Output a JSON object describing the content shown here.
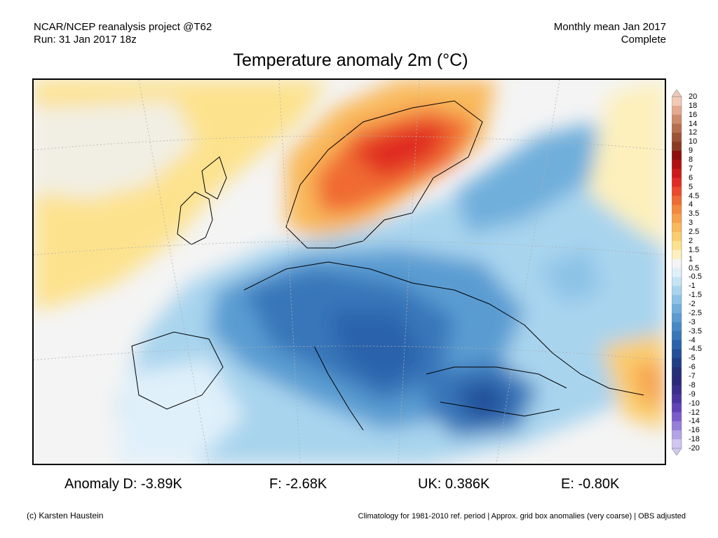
{
  "header": {
    "left_line1": "NCAR/NCEP reanalysis project @T62",
    "left_line2": "Run: 31 Jan 2017 18z",
    "right_line1": "Monthly mean Jan 2017",
    "right_line2": "Complete"
  },
  "title": "Temperature anomaly 2m (°C)",
  "colorbar": {
    "labels": [
      "20",
      "18",
      "16",
      "14",
      "12",
      "10",
      "9",
      "8",
      "7",
      "6",
      "5",
      "4.5",
      "4",
      "3.5",
      "3",
      "2.5",
      "2",
      "1.5",
      "1",
      "0.5",
      "-0.5",
      "-1",
      "-1.5",
      "-2",
      "-2.5",
      "-3",
      "-3.5",
      "-4",
      "-4.5",
      "-5",
      "-6",
      "-7",
      "-8",
      "-9",
      "-10",
      "-12",
      "-14",
      "-16",
      "-18",
      "-20"
    ],
    "colors": [
      "#f3c8b4",
      "#e4a98f",
      "#cd8b6b",
      "#b66e4e",
      "#9d5235",
      "#8b3a22",
      "#8f0d0d",
      "#b01010",
      "#cc1a1a",
      "#e02b22",
      "#ec4a2b",
      "#f06a33",
      "#f4883d",
      "#f7a24b",
      "#f9b95b",
      "#fbcd6e",
      "#fde28e",
      "#fdf0bc",
      "#f4f4f4",
      "#e0f0fa",
      "#c5e4f5",
      "#a8d4ee",
      "#8cc2e6",
      "#70afdc",
      "#5a9cd2",
      "#4689c6",
      "#3776b9",
      "#2a63ab",
      "#234f99",
      "#1f3e86",
      "#242f77",
      "#2b2a78",
      "#3a2e8c",
      "#4b35a0",
      "#6044b5",
      "#7a5dca",
      "#967ed9",
      "#b3a2e6",
      "#d0c7f2"
    ]
  },
  "stats": [
    {
      "label": "Anomaly D:",
      "value": "-3.89K"
    },
    {
      "label": "F:",
      "value": "-2.68K"
    },
    {
      "label": "UK:",
      "value": "0.386K"
    },
    {
      "label": "E:",
      "value": "-0.80K"
    }
  ],
  "footer": {
    "credit": "(c) Karsten Haustein",
    "note": "Climatology for 1981-2010 ref. period | Approx. grid box anomalies (very coarse) | OBS adjusted"
  }
}
